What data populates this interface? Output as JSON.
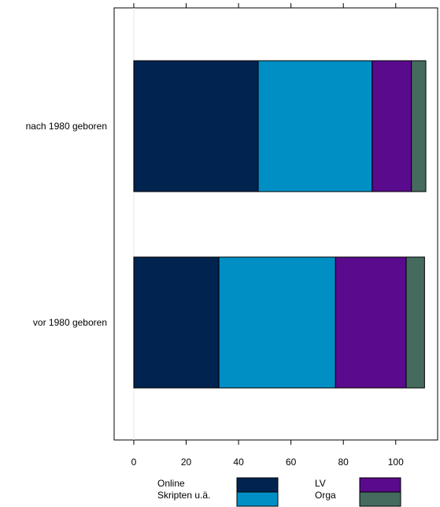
{
  "chart_data": {
    "type": "bar",
    "orientation": "horizontal",
    "stacked": true,
    "categories": [
      "nach 1980 geboren",
      "vor 1980 geboren"
    ],
    "series": [
      {
        "name": "Online",
        "color": "#00234f",
        "values": [
          47.5,
          32.5
        ]
      },
      {
        "name": "Skripten u.ä.",
        "color": "#008fc5",
        "values": [
          43.5,
          44.5
        ]
      },
      {
        "name": "LV",
        "color": "#5a0a8c",
        "values": [
          15.0,
          27.0
        ]
      },
      {
        "name": "Orga",
        "color": "#456b5f",
        "values": [
          5.5,
          7.0
        ]
      }
    ],
    "xticks": [
      0,
      20,
      40,
      60,
      80,
      100
    ],
    "xlim": [
      -7.5,
      116
    ],
    "grid": false,
    "legend_position": "bottom"
  }
}
